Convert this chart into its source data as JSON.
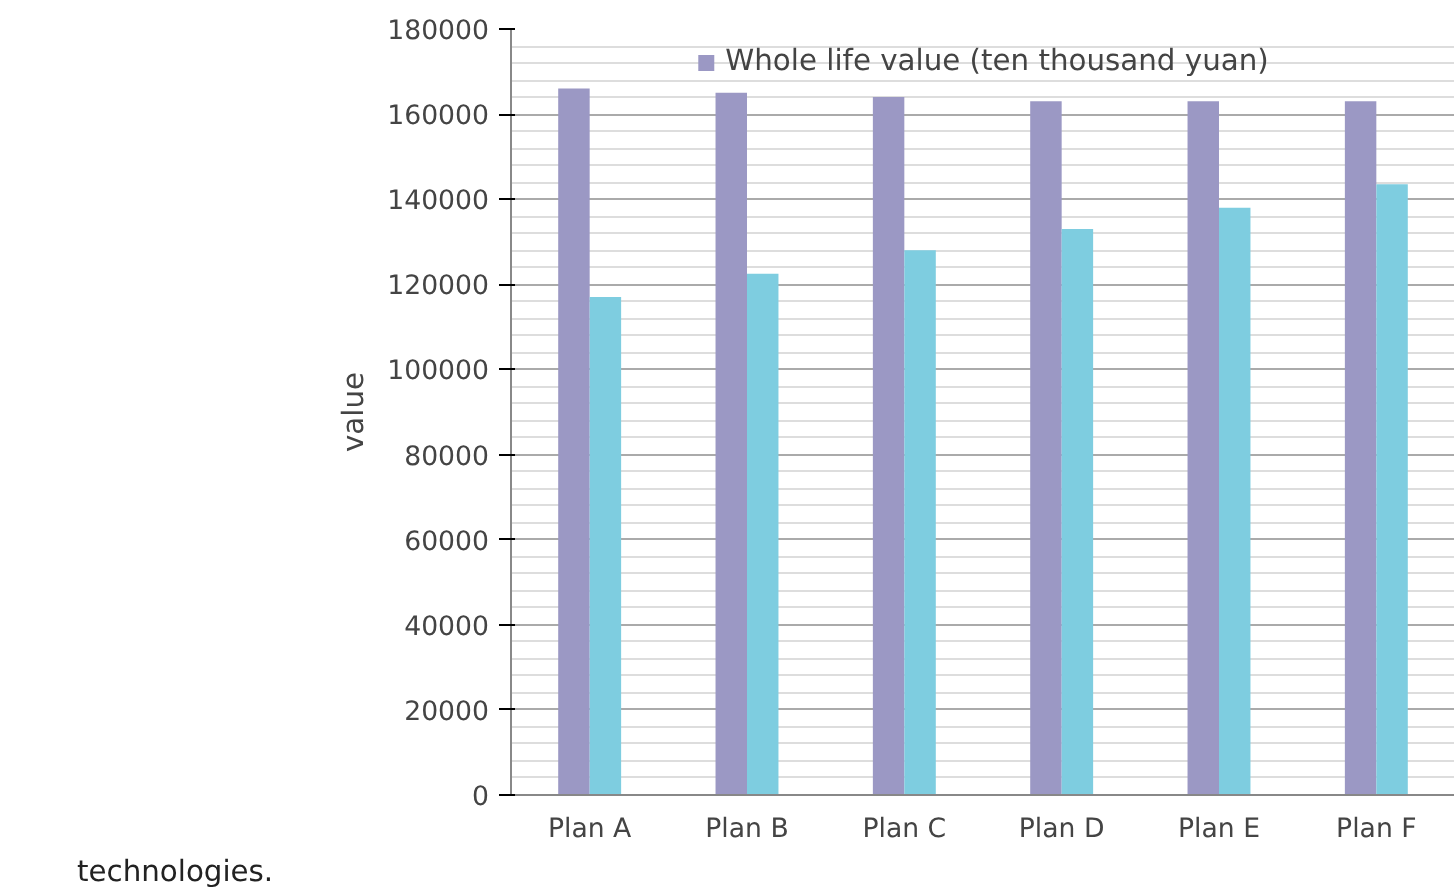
{
  "chart_data": {
    "type": "bar",
    "ylabel": "value",
    "categories": [
      "Plan A",
      "Plan B",
      "Plan C",
      "Plan D",
      "Plan E",
      "Plan F"
    ],
    "series": [
      {
        "name": "Whole life value (ten thousand yuan)",
        "color": "#9b98c4",
        "values": [
          166000,
          165000,
          164000,
          163000,
          163000,
          163000
        ]
      },
      {
        "color": "#7ecde0",
        "values": [
          117000,
          122500,
          128000,
          133000,
          138000,
          143500
        ]
      }
    ],
    "ylim": [
      0,
      180000
    ],
    "yticks": [
      0,
      20000,
      40000,
      60000,
      80000,
      100000,
      120000,
      140000,
      160000,
      180000
    ],
    "grid": "y",
    "legend": "top",
    "annotations": [
      "technologies."
    ]
  }
}
